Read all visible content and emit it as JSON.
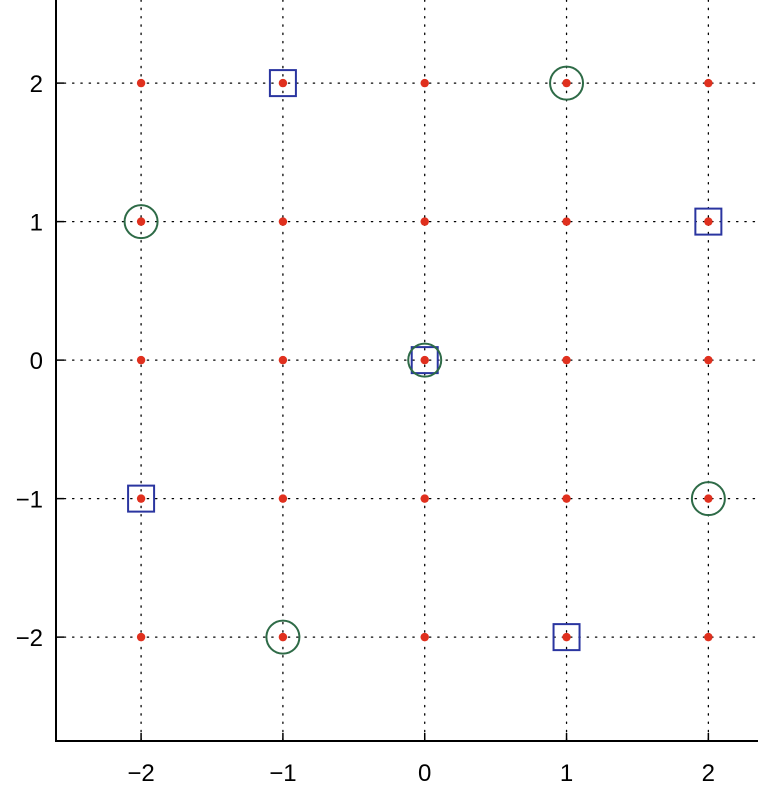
{
  "chart_data": {
    "type": "scatter",
    "title": "",
    "xlabel": "",
    "ylabel": "",
    "xlim": [
      -2.6,
      2.35
    ],
    "ylim": [
      -2.75,
      2.6
    ],
    "grid": true,
    "grid_style": "dotted",
    "xticks": [
      -2,
      -1,
      0,
      1,
      2
    ],
    "yticks": [
      -2,
      -1,
      0,
      1,
      2
    ],
    "xtick_labels": [
      "−2",
      "−1",
      "0",
      "1",
      "2"
    ],
    "ytick_labels": [
      "−2",
      "−1",
      "0",
      "1",
      "2"
    ],
    "series": [
      {
        "marker": "dot",
        "color": "#e0301e",
        "points": [
          [
            -2,
            -2
          ],
          [
            -1,
            -2
          ],
          [
            0,
            -2
          ],
          [
            1,
            -2
          ],
          [
            2,
            -2
          ],
          [
            -2,
            -1
          ],
          [
            -1,
            -1
          ],
          [
            0,
            -1
          ],
          [
            1,
            -1
          ],
          [
            2,
            -1
          ],
          [
            -2,
            0
          ],
          [
            -1,
            0
          ],
          [
            0,
            0
          ],
          [
            1,
            0
          ],
          [
            2,
            0
          ],
          [
            -2,
            1
          ],
          [
            -1,
            1
          ],
          [
            0,
            1
          ],
          [
            1,
            1
          ],
          [
            2,
            1
          ],
          [
            -2,
            2
          ],
          [
            -1,
            2
          ],
          [
            0,
            2
          ],
          [
            1,
            2
          ],
          [
            2,
            2
          ]
        ]
      },
      {
        "marker": "square",
        "color": "#2a35a0",
        "points": [
          [
            -1,
            2
          ],
          [
            2,
            1
          ],
          [
            0,
            0
          ],
          [
            -2,
            -1
          ],
          [
            1,
            -2
          ]
        ]
      },
      {
        "marker": "circle",
        "color": "#2e6b47",
        "points": [
          [
            1,
            2
          ],
          [
            -2,
            1
          ],
          [
            0,
            0
          ],
          [
            2,
            -1
          ],
          [
            -1,
            -2
          ]
        ]
      }
    ]
  }
}
